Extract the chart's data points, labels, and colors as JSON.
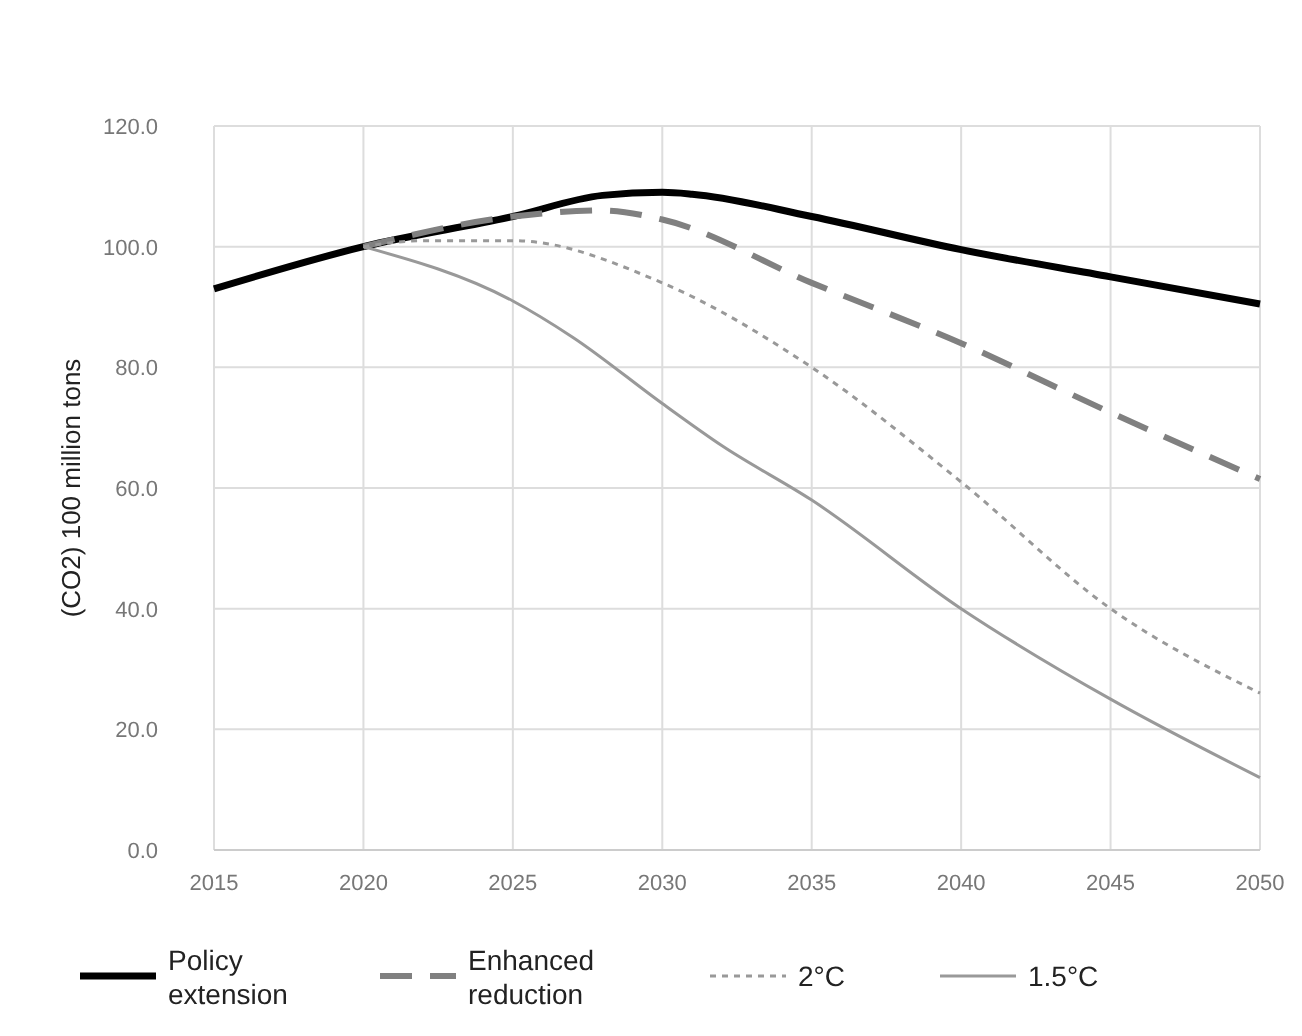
{
  "chart_data": {
    "type": "line",
    "ylabel": "(CO2) 100 million tons",
    "xlim": [
      2015,
      2050
    ],
    "xticks": [
      2015,
      2020,
      2025,
      2030,
      2035,
      2040,
      2045,
      2050
    ],
    "ylim": [
      0,
      120
    ],
    "yticks": [
      {
        "value": 0,
        "label": "0.0"
      },
      {
        "value": 20,
        "label": "20.0"
      },
      {
        "value": 40,
        "label": "40.0"
      },
      {
        "value": 60,
        "label": "60.0"
      },
      {
        "value": 80,
        "label": "80.0"
      },
      {
        "value": 100,
        "label": "100.0"
      },
      {
        "value": 120,
        "label": "120.0"
      }
    ],
    "grid": true,
    "legend": "bottom",
    "marker": "none",
    "series": [
      {
        "name": "Policy extension",
        "color": "#000000",
        "line_style": "solid",
        "x": [
          2015,
          2020,
          2025,
          2028,
          2030,
          2031,
          2035,
          2040,
          2045,
          2050
        ],
        "values": [
          93,
          100,
          105,
          108.5,
          109,
          108.7,
          105,
          99.5,
          95,
          90.5
        ]
      },
      {
        "name": "Enhanced reduction",
        "color": "#808080",
        "line_style": "dashed",
        "x": [
          2020,
          2025,
          2028,
          2030,
          2035,
          2040,
          2045,
          2050
        ],
        "values": [
          100,
          105,
          106,
          104.5,
          94,
          84,
          72.5,
          61.5
        ]
      },
      {
        "name": "2°C",
        "color": "#999999",
        "line_style": "dotted",
        "x": [
          2020,
          2022,
          2025,
          2030,
          2035,
          2040,
          2045,
          2050
        ],
        "values": [
          100,
          101,
          101,
          94,
          80,
          61,
          40,
          26
        ]
      },
      {
        "name": "1.5°C",
        "color": "#999999",
        "line_style": "solid",
        "x": [
          2020,
          2025,
          2027,
          2030,
          2032,
          2035,
          2040,
          2045,
          2050
        ],
        "values": [
          100,
          91,
          85,
          74,
          67,
          58,
          40,
          25,
          12
        ]
      }
    ]
  }
}
